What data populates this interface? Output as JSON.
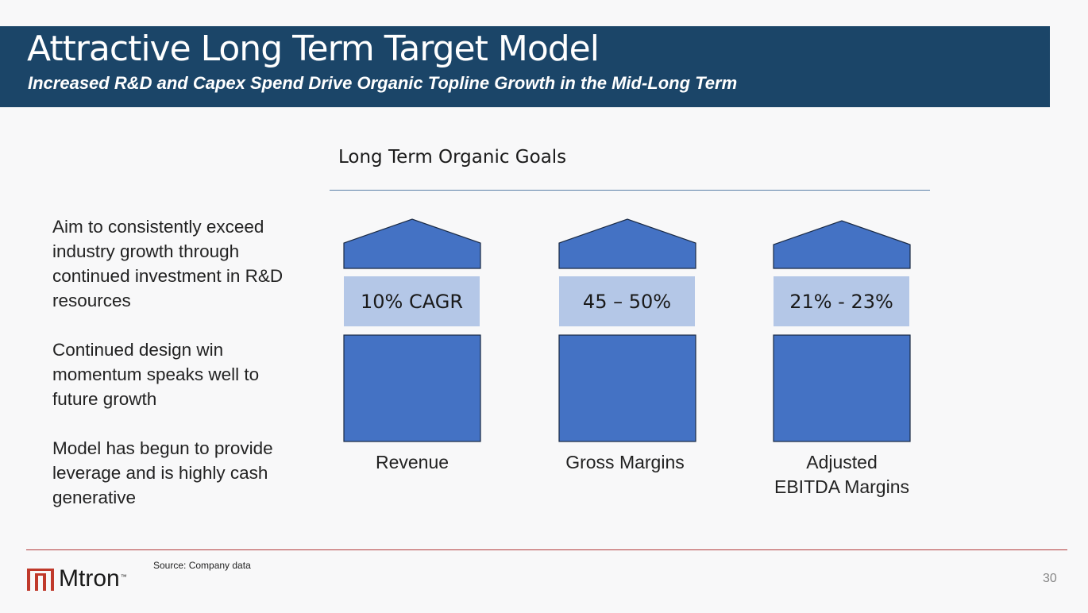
{
  "header": {
    "title": "Attractive Long Term Target Model",
    "subtitle": "Increased R&D and Capex Spend Drive Organic Topline Growth in the Mid-Long Term"
  },
  "section": {
    "heading": "Long Term Organic Goals"
  },
  "bullets": [
    "Aim to consistently exceed industry growth through continued investment in R&D resources",
    "Continued design win momentum speaks well to future growth",
    "Model has begun to provide leverage and is highly cash generative"
  ],
  "pillars": [
    {
      "metric": "10% CAGR",
      "caption_line1": "Revenue",
      "caption_line2": ""
    },
    {
      "metric": "45 – 50%",
      "caption_line1": "Gross Margins",
      "caption_line2": ""
    },
    {
      "metric": "21% - 23%",
      "caption_line1": "Adjusted",
      "caption_line2": "EBITDA Margins"
    }
  ],
  "footer": {
    "source": "Source: Company data",
    "logo_text": "Mtron",
    "logo_tm": "™",
    "page_number": "30"
  },
  "colors": {
    "header_bg": "#1b4568",
    "pillar_blue": "#4472c4",
    "metric_band": "#b4c7e7",
    "footer_rule": "#b23a3a",
    "logo_red": "#c0392b"
  }
}
